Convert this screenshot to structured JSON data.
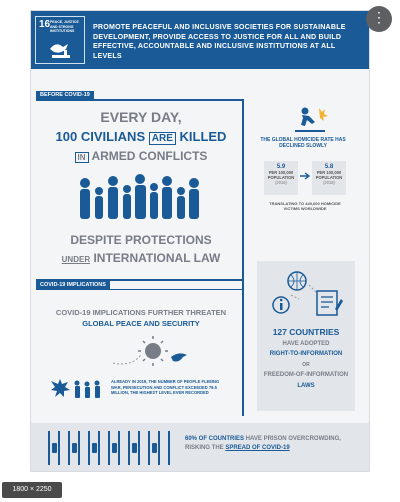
{
  "header": {
    "goal_number": "16",
    "goal_title": "PEACE, JUSTICE AND STRONG INSTITUTIONS",
    "title": "PROMOTE PEACEFUL AND INCLUSIVE SOCIETIES FOR SUSTAINABLE DEVELOPMENT, PROVIDE ACCESS TO JUSTICE FOR ALL AND BUILD EFFECTIVE, ACCOUNTABLE AND INCLUSIVE INSTITUTIONS AT ALL LEVELS"
  },
  "before": {
    "label": "BEFORE COVID-19",
    "line1": "EVERY DAY,",
    "line2_a": "100 CIVILIANS",
    "line2_b": "ARE",
    "line2_c": "KILLED",
    "line3_a": "IN",
    "line3_b": "ARMED CONFLICTS",
    "line4": "DESPITE PROTECTIONS",
    "line5_a": "UNDER",
    "line5_b": "INTERNATIONAL LAW"
  },
  "homicide": {
    "title": "THE GLOBAL HOMICIDE RATE HAS DECLINED SLOWLY",
    "left_value": "5.9",
    "left_unit": "PER 100,000 POPULATION",
    "left_year": "(2015)",
    "right_value": "5.8",
    "right_unit": "PER 100,000 POPULATION",
    "right_year": "(2018)",
    "victims": "TRANSLATING TO 440,000 HOMICIDE VICTIMS WORLDWIDE"
  },
  "covid": {
    "label": "COVID-19 IMPLICATIONS",
    "line1": "COVID-19 IMPLICATIONS FURTHER THREATEN",
    "line2": "GLOBAL PEACE AND SECURITY",
    "refugees": "ALREADY IN 2019, THE NUMBER OF PEOPLE FLEEING WAR, PERSECUTION AND CONFLICT EXCEEDED 79.5 MILLION, THE HIGHEST LEVEL EVER RECORDED"
  },
  "rti": {
    "count": "127 COUNTRIES",
    "line1": "HAVE ADOPTED",
    "line2": "RIGHT-TO-INFORMATION",
    "line3": "OR",
    "line4": "FREEDOM-OF-INFORMATION",
    "line5": "LAWS"
  },
  "prison": {
    "pct": "60% OF COUNTRIES",
    "rest": "HAVE PRISON OVERCROWDING,",
    "line2_a": "RISKING THE",
    "line2_b": "SPREAD OF COVID-19"
  },
  "overlay": {
    "size": "1800 × 2250",
    "menu": "⋮"
  },
  "colors": {
    "primary": "#1a5a96",
    "grey_text": "#777c86",
    "panel": "#e2e5ea"
  }
}
